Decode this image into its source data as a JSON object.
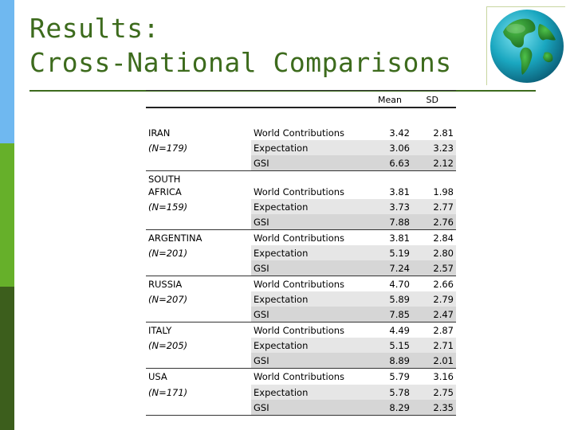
{
  "title": {
    "line1": "Results:",
    "line2": "Cross-National Comparisons"
  },
  "table": {
    "headers": {
      "mean": "Mean",
      "sd": "SD"
    },
    "groups": [
      {
        "country": "IRAN",
        "n": "(N=179)",
        "rows": [
          {
            "measure": "World Contributions",
            "mean": "3.42",
            "sd": "2.81"
          },
          {
            "measure": "Expectation",
            "mean": "3.06",
            "sd": "3.23"
          },
          {
            "measure": "GSI",
            "mean": "6.63",
            "sd": "2.12"
          }
        ]
      },
      {
        "country_line1": "SOUTH",
        "country_line2": "AFRICA",
        "n": "(N=159)",
        "rows": [
          {
            "measure": "World Contributions",
            "mean": "3.81",
            "sd": "1.98"
          },
          {
            "measure": "Expectation",
            "mean": "3.73",
            "sd": "2.77"
          },
          {
            "measure": "GSI",
            "mean": "7.88",
            "sd": "2.76"
          }
        ]
      },
      {
        "country": "ARGENTINA",
        "n": "(N=201)",
        "rows": [
          {
            "measure": "World Contributions",
            "mean": "3.81",
            "sd": "2.84"
          },
          {
            "measure": "Expectation",
            "mean": "5.19",
            "sd": "2.80"
          },
          {
            "measure": "GSI",
            "mean": "7.24",
            "sd": "2.57"
          }
        ]
      },
      {
        "country": "RUSSIA",
        "n": "(N=207)",
        "rows": [
          {
            "measure": "World Contributions",
            "mean": "4.70",
            "sd": "2.66"
          },
          {
            "measure": "Expectation",
            "mean": "5.89",
            "sd": "2.79"
          },
          {
            "measure": "GSI",
            "mean": "7.85",
            "sd": "2.47"
          }
        ]
      },
      {
        "country": "ITALY",
        "n": "(N=205)",
        "rows": [
          {
            "measure": "World Contributions",
            "mean": "4.49",
            "sd": "2.87"
          },
          {
            "measure": "Expectation",
            "mean": "5.15",
            "sd": "2.71"
          },
          {
            "measure": "GSI",
            "mean": "8.89",
            "sd": "2.01"
          }
        ]
      },
      {
        "country": "USA",
        "n": "(N=171)",
        "rows": [
          {
            "measure": "World Contributions",
            "mean": "5.79",
            "sd": "3.16"
          },
          {
            "measure": "Expectation",
            "mean": "5.78",
            "sd": "2.75"
          },
          {
            "measure": "GSI",
            "mean": "8.29",
            "sd": "2.35"
          }
        ]
      }
    ]
  },
  "colors": {
    "title": "#3d6b1d",
    "band_top": "#6fb8f0",
    "band_middle": "#66b02a",
    "band_bottom": "#3c5e1c",
    "row_shade": "#e6e6e6"
  },
  "icons": {
    "globe": "globe-icon"
  }
}
